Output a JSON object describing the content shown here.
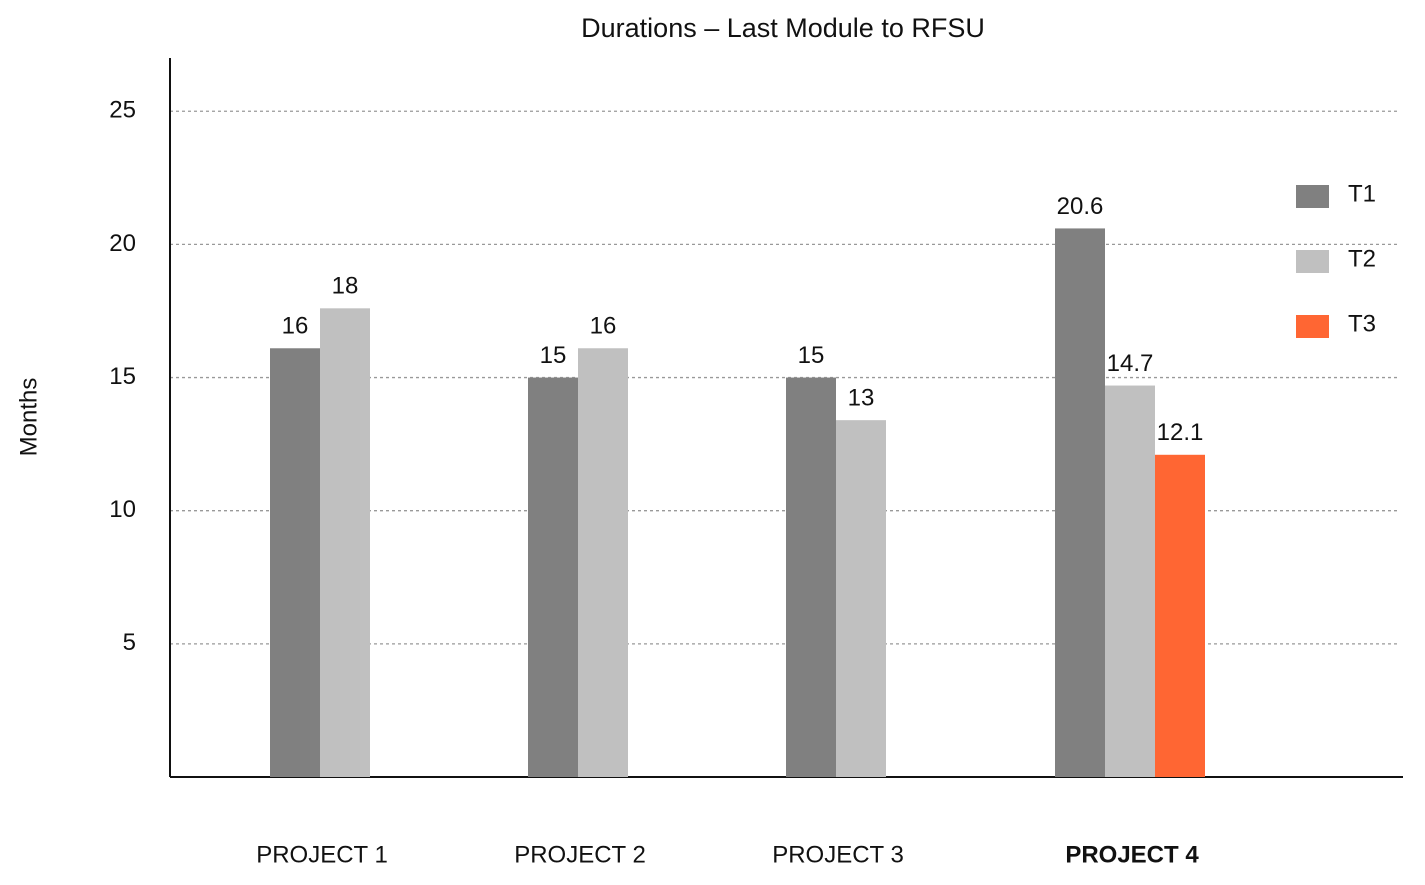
{
  "chart_data": {
    "type": "bar",
    "title": "Durations – Last Module to RFSU",
    "y_label": "Months",
    "categories": [
      "PROJECT 1",
      "PROJECT 2",
      "PROJECT 3",
      "PROJECT 4"
    ],
    "series": [
      {
        "name": "T1",
        "color": "#808080",
        "values": [
          16.1,
          15,
          15,
          20.6
        ],
        "value_labels": [
          "16",
          "15",
          "15",
          "20.6"
        ]
      },
      {
        "name": "T2",
        "color": "#c0c0c0",
        "values": [
          17.6,
          16.1,
          13.4,
          14.7
        ],
        "value_labels": [
          "18",
          "16",
          "13",
          "14.7"
        ]
      },
      {
        "name": "T3",
        "color": "#ff6633",
        "values": [
          null,
          null,
          null,
          12.1
        ],
        "value_labels": [
          null,
          null,
          null,
          "12.1"
        ]
      }
    ],
    "ylim": [
      0,
      27
    ],
    "yticks": [
      5,
      10,
      15,
      20,
      25
    ],
    "grid": true,
    "legend": "right"
  }
}
